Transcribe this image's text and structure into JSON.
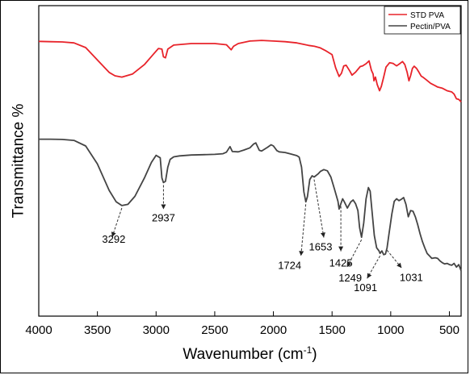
{
  "chart_data": {
    "type": "line",
    "title": "",
    "xlabel": "Wavenumber (cm",
    "xlabel_sup": "-1",
    "xlabel_close": ")",
    "ylabel": "Transmittance %",
    "xlim": [
      4000,
      400
    ],
    "x_reversed": true,
    "ylim": [
      0,
      100
    ],
    "y_ticks_shown": false,
    "grid": false,
    "legend_position": "top-right",
    "x_ticks": [
      4000,
      3500,
      3000,
      2500,
      2000,
      1500,
      1000,
      500
    ],
    "x_tick_labels": [
      "4000",
      "3500",
      "3000",
      "2500",
      "2000",
      "1500",
      "1000",
      "500"
    ],
    "series": [
      {
        "name": "STD PVA",
        "color": "#e8232a",
        "points": [
          [
            4000,
            88.5
          ],
          [
            3900,
            88.4
          ],
          [
            3800,
            88.3
          ],
          [
            3700,
            88.0
          ],
          [
            3600,
            86.5
          ],
          [
            3500,
            82.5
          ],
          [
            3400,
            78.5
          ],
          [
            3350,
            77.4
          ],
          [
            3292,
            77.0
          ],
          [
            3200,
            78.0
          ],
          [
            3100,
            81.0
          ],
          [
            3020,
            84.5
          ],
          [
            2980,
            86.2
          ],
          [
            2950,
            86.0
          ],
          [
            2937,
            83.5
          ],
          [
            2920,
            83.2
          ],
          [
            2900,
            86.0
          ],
          [
            2850,
            87.3
          ],
          [
            2700,
            87.8
          ],
          [
            2500,
            87.8
          ],
          [
            2400,
            87.4
          ],
          [
            2360,
            85.8
          ],
          [
            2340,
            86.9
          ],
          [
            2300,
            87.8
          ],
          [
            2200,
            88.6
          ],
          [
            2100,
            88.8
          ],
          [
            2000,
            88.6
          ],
          [
            1900,
            88.4
          ],
          [
            1800,
            88.0
          ],
          [
            1750,
            87.6
          ],
          [
            1700,
            87.2
          ],
          [
            1650,
            86.9
          ],
          [
            1600,
            86.4
          ],
          [
            1550,
            85.4
          ],
          [
            1500,
            84.2
          ],
          [
            1470,
            80.0
          ],
          [
            1440,
            77.2
          ],
          [
            1420,
            78.2
          ],
          [
            1400,
            80.6
          ],
          [
            1380,
            80.8
          ],
          [
            1350,
            79.0
          ],
          [
            1330,
            77.6
          ],
          [
            1300,
            78.6
          ],
          [
            1260,
            80.4
          ],
          [
            1240,
            80.6
          ],
          [
            1210,
            81.3
          ],
          [
            1185,
            82.2
          ],
          [
            1165,
            79.2
          ],
          [
            1150,
            78.0
          ],
          [
            1143,
            75.8
          ],
          [
            1130,
            77.0
          ],
          [
            1115,
            74.6
          ],
          [
            1095,
            72.6
          ],
          [
            1080,
            74.0
          ],
          [
            1060,
            77.0
          ],
          [
            1040,
            80.2
          ],
          [
            1010,
            81.6
          ],
          [
            980,
            81.4
          ],
          [
            950,
            80.6
          ],
          [
            920,
            81.4
          ],
          [
            900,
            82.0
          ],
          [
            880,
            81.0
          ],
          [
            860,
            78.5
          ],
          [
            845,
            75.8
          ],
          [
            830,
            77.5
          ],
          [
            815,
            79.8
          ],
          [
            800,
            80.5
          ],
          [
            780,
            79.8
          ],
          [
            760,
            78.6
          ],
          [
            740,
            77.3
          ],
          [
            720,
            76.8
          ],
          [
            700,
            76.2
          ],
          [
            680,
            75.6
          ],
          [
            660,
            75.0
          ],
          [
            640,
            74.6
          ],
          [
            620,
            74.2
          ],
          [
            600,
            73.8
          ],
          [
            580,
            73.6
          ],
          [
            560,
            73.4
          ],
          [
            540,
            73.0
          ],
          [
            520,
            72.6
          ],
          [
            500,
            72.4
          ],
          [
            480,
            72.2
          ],
          [
            460,
            71.5
          ],
          [
            440,
            70.0
          ],
          [
            420,
            69.8
          ],
          [
            400,
            69.0
          ]
        ]
      },
      {
        "name": "Pectin/PVA",
        "color": "#444444",
        "points": [
          [
            4000,
            57.0
          ],
          [
            3900,
            57.0
          ],
          [
            3800,
            56.9
          ],
          [
            3700,
            56.6
          ],
          [
            3600,
            54.8
          ],
          [
            3500,
            49.0
          ],
          [
            3400,
            40.5
          ],
          [
            3340,
            36.8
          ],
          [
            3292,
            35.6
          ],
          [
            3240,
            36.0
          ],
          [
            3180,
            38.6
          ],
          [
            3100,
            44.5
          ],
          [
            3040,
            49.5
          ],
          [
            3000,
            51.8
          ],
          [
            2965,
            51.0
          ],
          [
            2950,
            44.5
          ],
          [
            2937,
            43.0
          ],
          [
            2920,
            43.4
          ],
          [
            2900,
            48.0
          ],
          [
            2880,
            50.5
          ],
          [
            2850,
            51.3
          ],
          [
            2800,
            51.6
          ],
          [
            2700,
            51.9
          ],
          [
            2600,
            52.0
          ],
          [
            2500,
            52.1
          ],
          [
            2430,
            52.3
          ],
          [
            2400,
            52.8
          ],
          [
            2370,
            54.6
          ],
          [
            2350,
            53.0
          ],
          [
            2300,
            52.9
          ],
          [
            2250,
            53.5
          ],
          [
            2200,
            54.2
          ],
          [
            2170,
            55.4
          ],
          [
            2150,
            55.8
          ],
          [
            2120,
            53.4
          ],
          [
            2100,
            53.2
          ],
          [
            2050,
            54.4
          ],
          [
            2020,
            55.2
          ],
          [
            2000,
            54.8
          ],
          [
            1970,
            53.3
          ],
          [
            1950,
            52.9
          ],
          [
            1900,
            52.7
          ],
          [
            1850,
            52.2
          ],
          [
            1800,
            51.7
          ],
          [
            1780,
            51.2
          ],
          [
            1760,
            48.0
          ],
          [
            1740,
            40.0
          ],
          [
            1724,
            36.8
          ],
          [
            1710,
            38.5
          ],
          [
            1690,
            44.0
          ],
          [
            1670,
            45.2
          ],
          [
            1653,
            44.8
          ],
          [
            1620,
            45.8
          ],
          [
            1600,
            46.6
          ],
          [
            1570,
            47.2
          ],
          [
            1540,
            46.8
          ],
          [
            1510,
            44.8
          ],
          [
            1480,
            41.0
          ],
          [
            1450,
            37.0
          ],
          [
            1440,
            34.5
          ],
          [
            1425,
            36.2
          ],
          [
            1410,
            37.8
          ],
          [
            1395,
            36.8
          ],
          [
            1370,
            34.8
          ],
          [
            1340,
            36.8
          ],
          [
            1320,
            37.4
          ],
          [
            1300,
            36.2
          ],
          [
            1280,
            34.0
          ],
          [
            1265,
            28.5
          ],
          [
            1249,
            25.4
          ],
          [
            1230,
            30.0
          ],
          [
            1210,
            37.8
          ],
          [
            1190,
            41.4
          ],
          [
            1175,
            40.2
          ],
          [
            1160,
            34.0
          ],
          [
            1140,
            26.0
          ],
          [
            1120,
            22.0
          ],
          [
            1100,
            21.0
          ],
          [
            1091,
            20.2
          ],
          [
            1075,
            21.0
          ],
          [
            1060,
            19.8
          ],
          [
            1045,
            20.0
          ],
          [
            1031,
            22.0
          ],
          [
            1015,
            26.5
          ],
          [
            990,
            33.0
          ],
          [
            970,
            37.0
          ],
          [
            950,
            37.8
          ],
          [
            930,
            37.2
          ],
          [
            910,
            37.6
          ],
          [
            890,
            38.2
          ],
          [
            870,
            36.0
          ],
          [
            850,
            32.0
          ],
          [
            830,
            34.0
          ],
          [
            810,
            33.8
          ],
          [
            790,
            32.0
          ],
          [
            770,
            29.5
          ],
          [
            750,
            26.5
          ],
          [
            730,
            24.0
          ],
          [
            710,
            22.0
          ],
          [
            690,
            20.2
          ],
          [
            670,
            19.4
          ],
          [
            650,
            18.6
          ],
          [
            620,
            18.8
          ],
          [
            600,
            18.6
          ],
          [
            580,
            17.8
          ],
          [
            560,
            17.2
          ],
          [
            540,
            16.8
          ],
          [
            520,
            17.0
          ],
          [
            500,
            16.6
          ],
          [
            480,
            16.4
          ],
          [
            460,
            17.0
          ],
          [
            440,
            15.8
          ],
          [
            420,
            16.6
          ],
          [
            400,
            14.6
          ]
        ]
      }
    ],
    "annotations": [
      {
        "label": "3292",
        "x": 3292
      },
      {
        "label": "2937",
        "x": 2937
      },
      {
        "label": "1724",
        "x": 1724
      },
      {
        "label": "1653",
        "x": 1653
      },
      {
        "label": "1425",
        "x": 1425
      },
      {
        "label": "1249",
        "x": 1249
      },
      {
        "label": "1091",
        "x": 1091
      },
      {
        "label": "1031",
        "x": 1031
      }
    ]
  }
}
